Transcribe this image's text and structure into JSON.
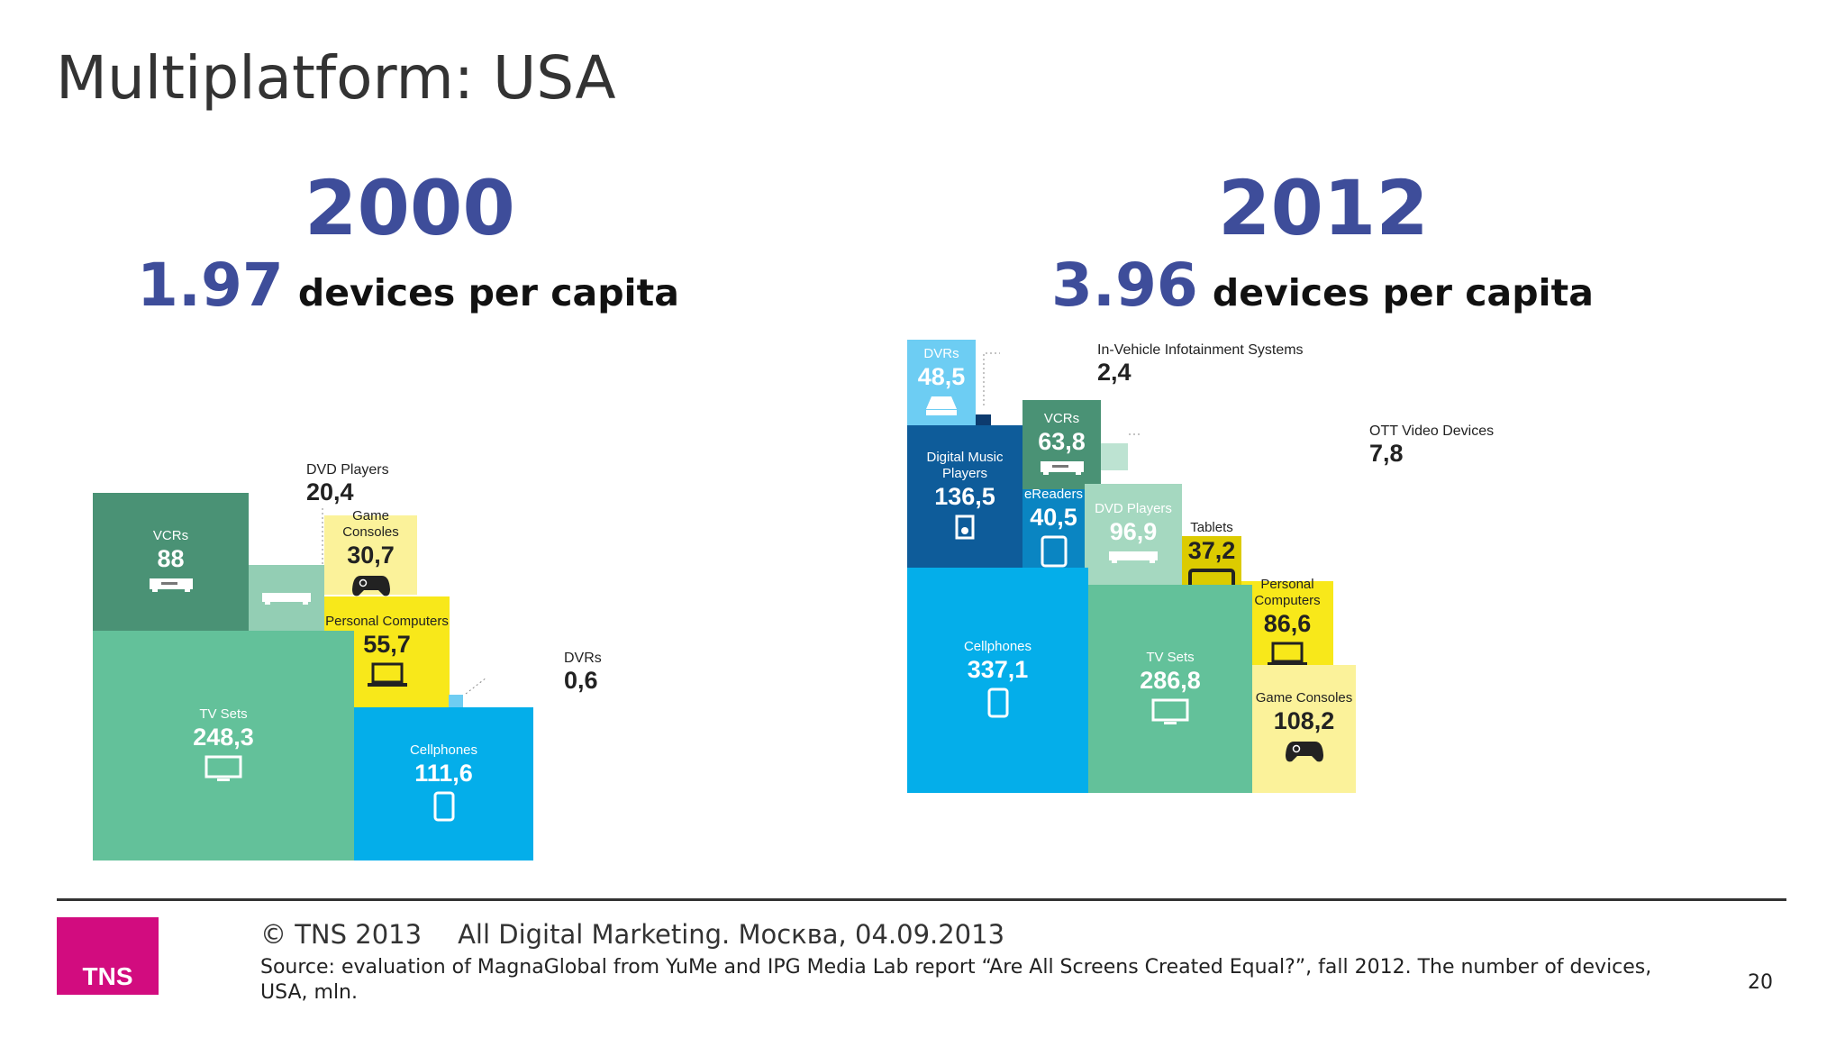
{
  "title": "Multiplatform: USA",
  "footer": {
    "copyright": "© TNS 2013",
    "event": "All Digital Marketing. Москва, 04.09.2013",
    "source": "Source: evaluation of MagnaGlobal from YuMe and IPG Media Lab report “Are All Screens Created Equal?”, fall 2012. The number of devices, USA, mln.",
    "page_number": "20",
    "logo_text": "TNS",
    "logo_color": "#d20c7f"
  },
  "chart_data": [
    {
      "type": "treemap",
      "title": "2000",
      "devices_per_capita": "1.97",
      "subtitle": "devices per capita",
      "items": [
        {
          "label": "VCRs",
          "value": "88",
          "color": "#4a9275",
          "icon": "vcr-icon"
        },
        {
          "label": "DVD Players",
          "value": "20,4",
          "color": "#93ceb4",
          "icon": "dvd-player-icon",
          "callout": true
        },
        {
          "label": "Game Consoles",
          "value": "30,7",
          "color": "#fbf29a",
          "icon": "gamepad-icon"
        },
        {
          "label": "Personal Computers",
          "value": "55,7",
          "color": "#f8e81a",
          "icon": "laptop-icon"
        },
        {
          "label": "TV Sets",
          "value": "248,3",
          "color": "#63c19a",
          "icon": "tv-icon"
        },
        {
          "label": "Cellphones",
          "value": "111,6",
          "color": "#04aeea",
          "icon": "phone-icon"
        },
        {
          "label": "DVRs",
          "value": "0,6",
          "color": "#6fcdf2",
          "icon": "",
          "callout": true
        }
      ]
    },
    {
      "type": "treemap",
      "title": "2012",
      "devices_per_capita": "3.96",
      "subtitle": "devices per capita",
      "items": [
        {
          "label": "DVRs",
          "value": "48,5",
          "color": "#6dcdf3",
          "icon": "dvr-icon"
        },
        {
          "label": "In-Vehicle Infotainment Systems",
          "value": "2,4",
          "color": "#0d3b6e",
          "icon": "",
          "callout": true
        },
        {
          "label": "Digital Music Players",
          "value": "136,5",
          "color": "#0e5c9a",
          "icon": "music-player-icon"
        },
        {
          "label": "VCRs",
          "value": "63,8",
          "color": "#4a9275",
          "icon": "vcr-icon"
        },
        {
          "label": "eReaders",
          "value": "40,5",
          "color": "#0a85c2",
          "icon": "ereader-icon"
        },
        {
          "label": "OTT Video Devices",
          "value": "7,8",
          "color": "#bde3d2",
          "icon": "",
          "callout": true
        },
        {
          "label": "DVD Players",
          "value": "96,9",
          "color": "#a5d8c0",
          "icon": "dvd-player-icon"
        },
        {
          "label": "Tablets",
          "value": "37,2",
          "color": "#dccb00",
          "icon": "tablet-icon"
        },
        {
          "label": "Personal Computers",
          "value": "86,6",
          "color": "#f8e81a",
          "icon": "laptop-icon"
        },
        {
          "label": "Cellphones",
          "value": "337,1",
          "color": "#04aeea",
          "icon": "phone-icon"
        },
        {
          "label": "TV Sets",
          "value": "286,8",
          "color": "#63c19a",
          "icon": "tv-icon"
        },
        {
          "label": "Game Consoles",
          "value": "108,2",
          "color": "#fbf29a",
          "icon": "gamepad-icon"
        }
      ]
    }
  ]
}
